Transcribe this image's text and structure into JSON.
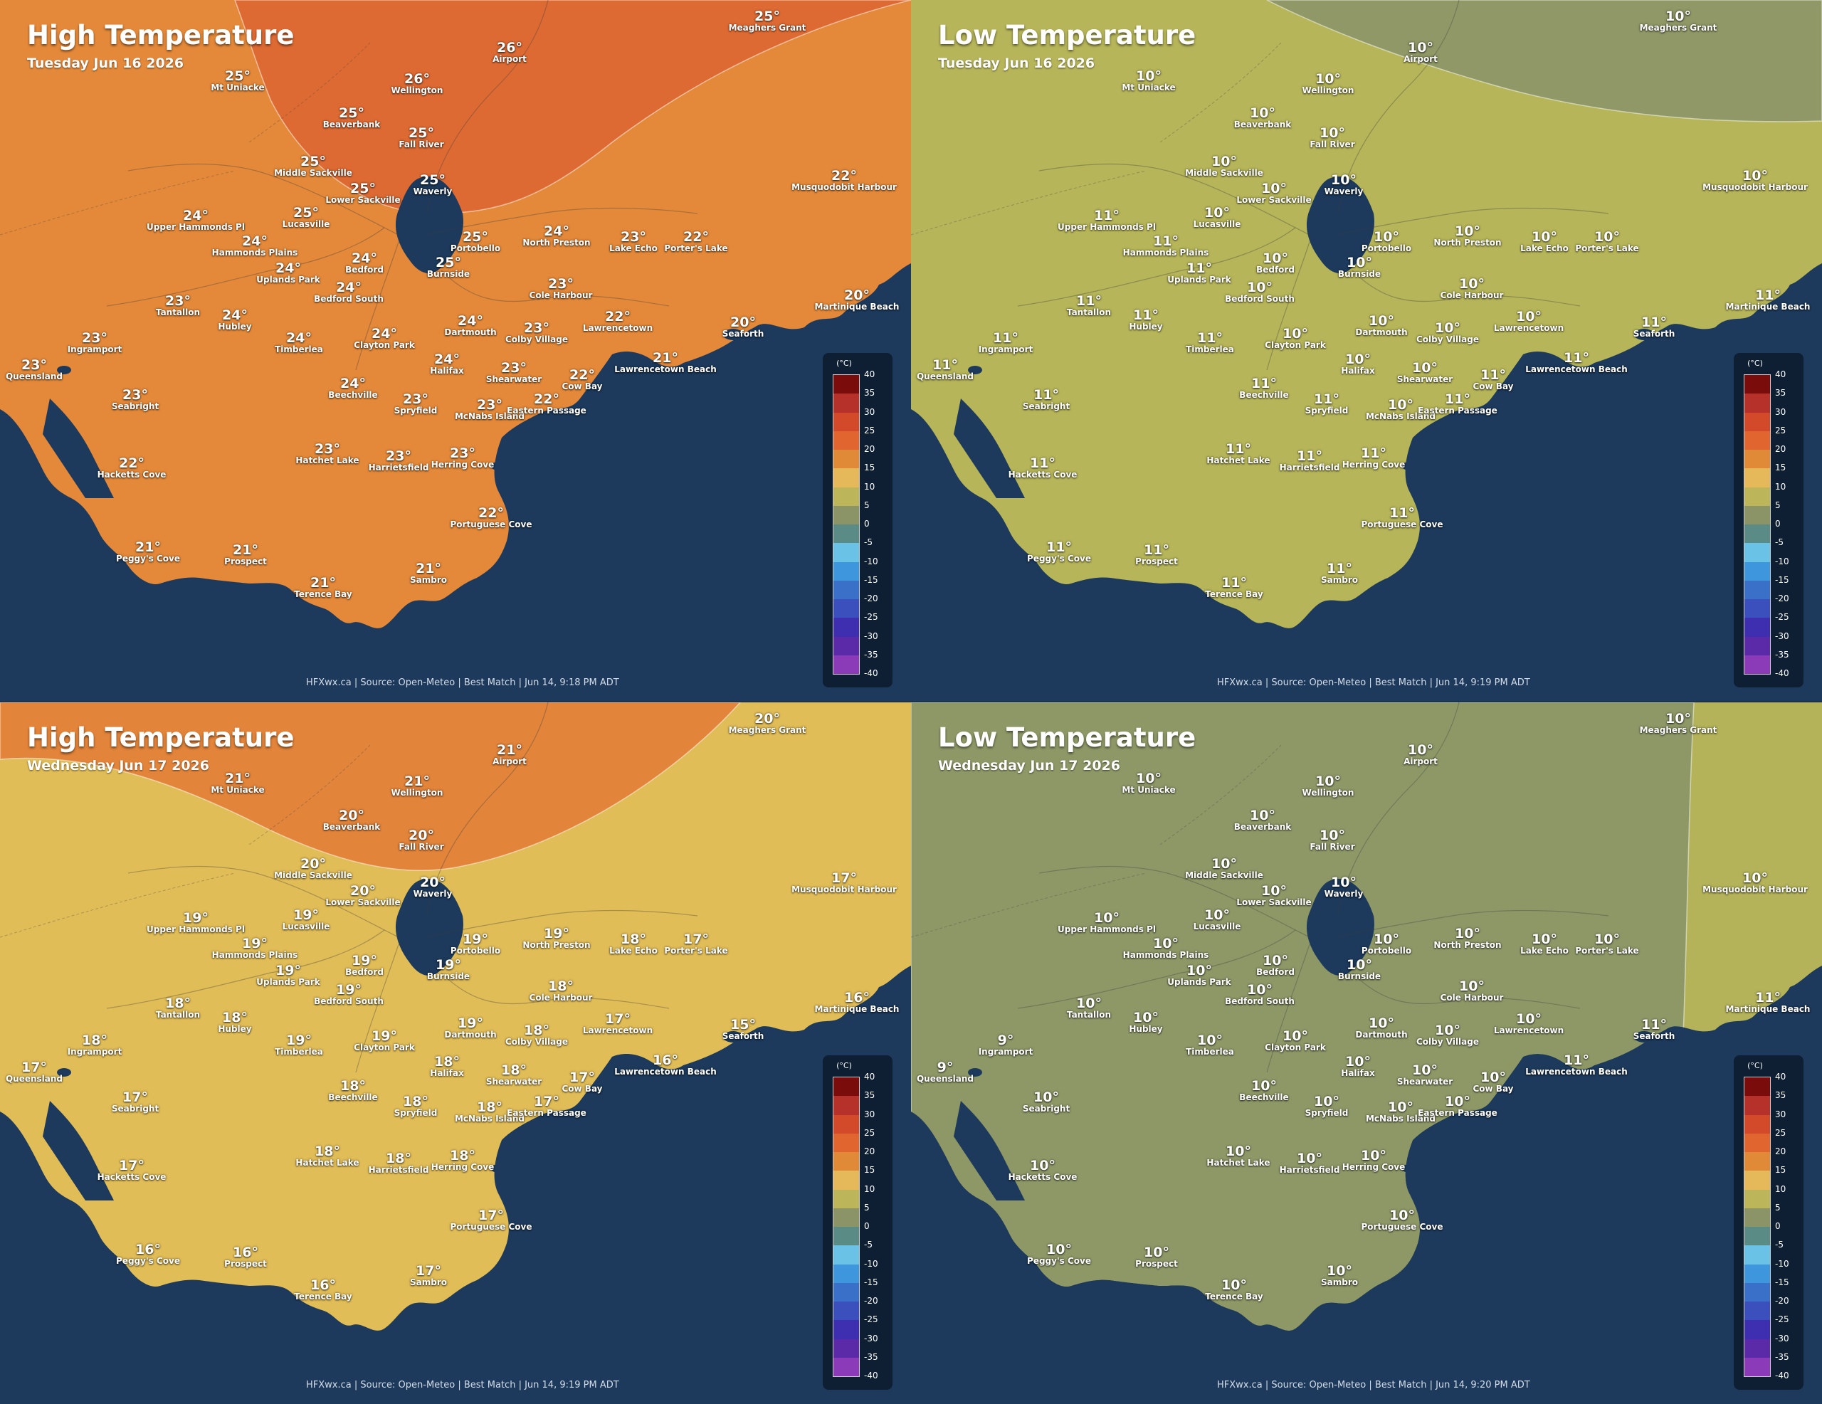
{
  "legend": {
    "unit": "(°C)",
    "ticks": [
      "40",
      "35",
      "30",
      "25",
      "20",
      "15",
      "10",
      "5",
      "0",
      "-5",
      "-10",
      "-15",
      "-20",
      "-25",
      "-30",
      "-35",
      "-40"
    ],
    "colors": [
      "#7a0c0c",
      "#b5312a",
      "#d34a2a",
      "#e0652f",
      "#e08a37",
      "#e5b95a",
      "#bdb55a",
      "#8a9467",
      "#5a8c85",
      "#6ac3e6",
      "#3e96dc",
      "#3a70c8",
      "#3b4fbd",
      "#3e2fb0",
      "#5a2aa8",
      "#8b3ab8",
      "#c445d4"
    ]
  },
  "places": [
    "Meaghers Grant",
    "Airport",
    "Wellington",
    "Mt Uniacke",
    "Beaverbank",
    "Fall River",
    "Middle Sackville",
    "Lower Sackville",
    "Waverly",
    "Musquodobit Harbour",
    "Upper Hammonds Pl",
    "Lucasville",
    "Hammonds Plains",
    "Uplands Park",
    "Bedford",
    "Portobello",
    "North Preston",
    "Lake Echo",
    "Porter's Lake",
    "Burnside",
    "Cole Harbour",
    "Bedford South",
    "Tantallon",
    "Hubley",
    "Martinique Beach",
    "Dartmouth",
    "Lawrencetown",
    "Seaforth",
    "Ingramport",
    "Timberlea",
    "Clayton Park",
    "Colby Village",
    "Queensland",
    "Halifax",
    "Shearwater",
    "Lawrencetown Beach",
    "Cow Bay",
    "Beechville",
    "Seabright",
    "McNabs Island",
    "Spryfield",
    "Eastern Passage",
    "Hatchet Lake",
    "Harrietsfield",
    "Herring Cove",
    "Hacketts Cove",
    "Portuguese Cove",
    "Peggy's Cove",
    "Prospect",
    "Sambro",
    "Terence Bay"
  ],
  "panels": [
    {
      "title": "High Temperature",
      "date": "Tuesday Jun 16 2026",
      "credit": "HFXwx.ca | Source: Open-Meteo | Best Match | Jun 14, 9:18 PM ADT",
      "temps": [
        "25°",
        "26°",
        "26°",
        "25°",
        "25°",
        "25°",
        "25°",
        "25°",
        "25°",
        "22°",
        "24°",
        "25°",
        "24°",
        "24°",
        "24°",
        "25°",
        "24°",
        "23°",
        "22°",
        "25°",
        "23°",
        "24°",
        "23°",
        "24°",
        "20°",
        "24°",
        "22°",
        "20°",
        "23°",
        "24°",
        "24°",
        "23°",
        "23°",
        "24°",
        "23°",
        "21°",
        "22°",
        "24°",
        "23°",
        "23°",
        "23°",
        "22°",
        "23°",
        "23°",
        "23°",
        "22°",
        "22°",
        "21°",
        "21°",
        "21°",
        "21°"
      ]
    },
    {
      "title": "Low Temperature",
      "date": "Tuesday Jun 16 2026",
      "credit": "HFXwx.ca | Source: Open-Meteo | Best Match | Jun 14, 9:19 PM ADT",
      "temps": [
        "10°",
        "10°",
        "10°",
        "10°",
        "10°",
        "10°",
        "10°",
        "10°",
        "10°",
        "10°",
        "11°",
        "10°",
        "11°",
        "11°",
        "10°",
        "10°",
        "10°",
        "10°",
        "10°",
        "10°",
        "10°",
        "10°",
        "11°",
        "11°",
        "11°",
        "10°",
        "10°",
        "11°",
        "11°",
        "11°",
        "10°",
        "10°",
        "11°",
        "10°",
        "10°",
        "11°",
        "11°",
        "11°",
        "11°",
        "10°",
        "11°",
        "11°",
        "11°",
        "11°",
        "11°",
        "11°",
        "11°",
        "11°",
        "11°",
        "11°",
        "11°"
      ]
    },
    {
      "title": "High Temperature",
      "date": "Wednesday Jun 17 2026",
      "credit": "HFXwx.ca | Source: Open-Meteo | Best Match | Jun 14, 9:19 PM ADT",
      "temps": [
        "20°",
        "21°",
        "21°",
        "21°",
        "20°",
        "20°",
        "20°",
        "20°",
        "20°",
        "17°",
        "19°",
        "19°",
        "19°",
        "19°",
        "19°",
        "19°",
        "19°",
        "18°",
        "17°",
        "19°",
        "18°",
        "19°",
        "18°",
        "18°",
        "16°",
        "19°",
        "17°",
        "15°",
        "18°",
        "19°",
        "19°",
        "18°",
        "17°",
        "18°",
        "18°",
        "16°",
        "17°",
        "18°",
        "17°",
        "18°",
        "18°",
        "17°",
        "18°",
        "18°",
        "18°",
        "17°",
        "17°",
        "16°",
        "16°",
        "17°",
        "16°"
      ]
    },
    {
      "title": "Low Temperature",
      "date": "Wednesday Jun 17 2026",
      "credit": "HFXwx.ca | Source: Open-Meteo | Best Match | Jun 14, 9:20 PM ADT",
      "temps": [
        "10°",
        "10°",
        "10°",
        "10°",
        "10°",
        "10°",
        "10°",
        "10°",
        "10°",
        "10°",
        "10°",
        "10°",
        "10°",
        "10°",
        "10°",
        "10°",
        "10°",
        "10°",
        "10°",
        "10°",
        "10°",
        "10°",
        "10°",
        "10°",
        "11°",
        "10°",
        "10°",
        "11°",
        "9°",
        "10°",
        "10°",
        "10°",
        "9°",
        "10°",
        "10°",
        "11°",
        "10°",
        "10°",
        "10°",
        "10°",
        "10°",
        "10°",
        "10°",
        "10°",
        "10°",
        "10°",
        "10°",
        "10°",
        "10°",
        "10°",
        "10°"
      ]
    }
  ]
}
